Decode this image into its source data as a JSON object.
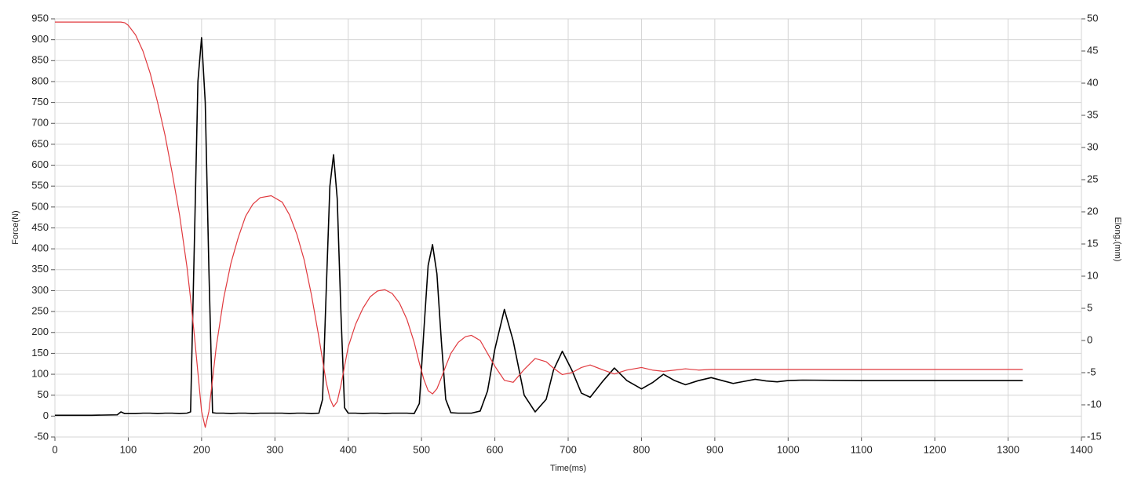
{
  "chart_data": {
    "type": "line",
    "x_label": "Time(ms)",
    "y_label": "Force(N)",
    "y2_label": "Elong.(mm)",
    "x": [
      0,
      50,
      85,
      90,
      95,
      100,
      110,
      120,
      130,
      140,
      150,
      160,
      170,
      180,
      185,
      190,
      195,
      200,
      205,
      210,
      215,
      220,
      230,
      240,
      250,
      260,
      270,
      280,
      295,
      310,
      320,
      330,
      340,
      350,
      360,
      365,
      370,
      375,
      380,
      385,
      390,
      395,
      400,
      410,
      420,
      430,
      440,
      450,
      460,
      470,
      480,
      490,
      497,
      503,
      509,
      515,
      521,
      527,
      533,
      540,
      550,
      560,
      568,
      580,
      590,
      600,
      613,
      625,
      640,
      655,
      670,
      680,
      692,
      705,
      718,
      730,
      748,
      763,
      780,
      800,
      815,
      830,
      845,
      860,
      878,
      895,
      910,
      925,
      940,
      955,
      970,
      985,
      1000,
      1020,
      1100,
      1200,
      1320
    ],
    "series": [
      {
        "color": "#000000",
        "values": [
          2,
          2,
          3,
          10,
          6,
          6,
          6,
          7,
          7,
          6,
          7,
          7,
          6,
          7,
          10,
          400,
          800,
          905,
          750,
          350,
          8,
          7,
          7,
          6,
          7,
          7,
          6,
          7,
          7,
          7,
          6,
          7,
          7,
          6,
          7,
          40,
          300,
          550,
          625,
          520,
          250,
          20,
          7,
          7,
          6,
          7,
          7,
          6,
          7,
          7,
          7,
          6,
          30,
          200,
          360,
          410,
          340,
          180,
          40,
          8,
          7,
          7,
          7,
          12,
          60,
          160,
          255,
          180,
          50,
          10,
          40,
          110,
          155,
          110,
          55,
          45,
          85,
          115,
          85,
          65,
          80,
          100,
          85,
          75,
          85,
          92,
          85,
          78,
          83,
          88,
          84,
          82,
          85,
          86,
          85,
          85,
          85
        ]
      },
      {
        "color": "#e0393e",
        "axis": "y2",
        "values": [
          49.5,
          49.5,
          49.5,
          49.5,
          49.4,
          49,
          47.5,
          45,
          41.5,
          37,
          32,
          26,
          19.5,
          11.5,
          6.5,
          1,
          -5,
          -11,
          -13.5,
          -11,
          -6,
          -1,
          6.5,
          12,
          16,
          19.3,
          21.2,
          22.2,
          22.5,
          21.5,
          19.5,
          16.5,
          12.5,
          7,
          0.5,
          -3,
          -6.5,
          -9,
          -10.3,
          -9.5,
          -7,
          -4,
          -1,
          2.5,
          5,
          6.8,
          7.7,
          7.9,
          7.3,
          5.8,
          3.3,
          -0.3,
          -3.5,
          -6,
          -7.8,
          -8.3,
          -7.5,
          -5.8,
          -4,
          -2,
          -0.3,
          0.6,
          0.8,
          0,
          -2,
          -4,
          -6.2,
          -6.5,
          -4.5,
          -2.8,
          -3.3,
          -4.3,
          -5.3,
          -5,
          -4.2,
          -3.8,
          -4.6,
          -5.2,
          -4.6,
          -4.2,
          -4.6,
          -4.8,
          -4.6,
          -4.4,
          -4.6,
          -4.5,
          -4.5,
          -4.5,
          -4.5,
          -4.5,
          -4.5,
          -4.5,
          -4.5,
          -4.5,
          -4.5,
          -4.5,
          -4.5
        ]
      }
    ],
    "xlim": [
      0,
      1400
    ],
    "xticks": [
      0,
      100,
      200,
      300,
      400,
      500,
      600,
      700,
      800,
      900,
      1000,
      1100,
      1200,
      1300,
      1400
    ],
    "ylim": [
      -50,
      950
    ],
    "yticks": [
      -50,
      0,
      50,
      100,
      150,
      200,
      250,
      300,
      350,
      400,
      450,
      500,
      550,
      600,
      650,
      700,
      750,
      800,
      850,
      900,
      950
    ],
    "y2lim": [
      -15,
      50
    ],
    "y2ticks": [
      -15,
      -10,
      -5,
      0,
      5,
      10,
      15,
      20,
      25,
      30,
      35,
      40,
      45,
      50
    ],
    "grid": true
  }
}
